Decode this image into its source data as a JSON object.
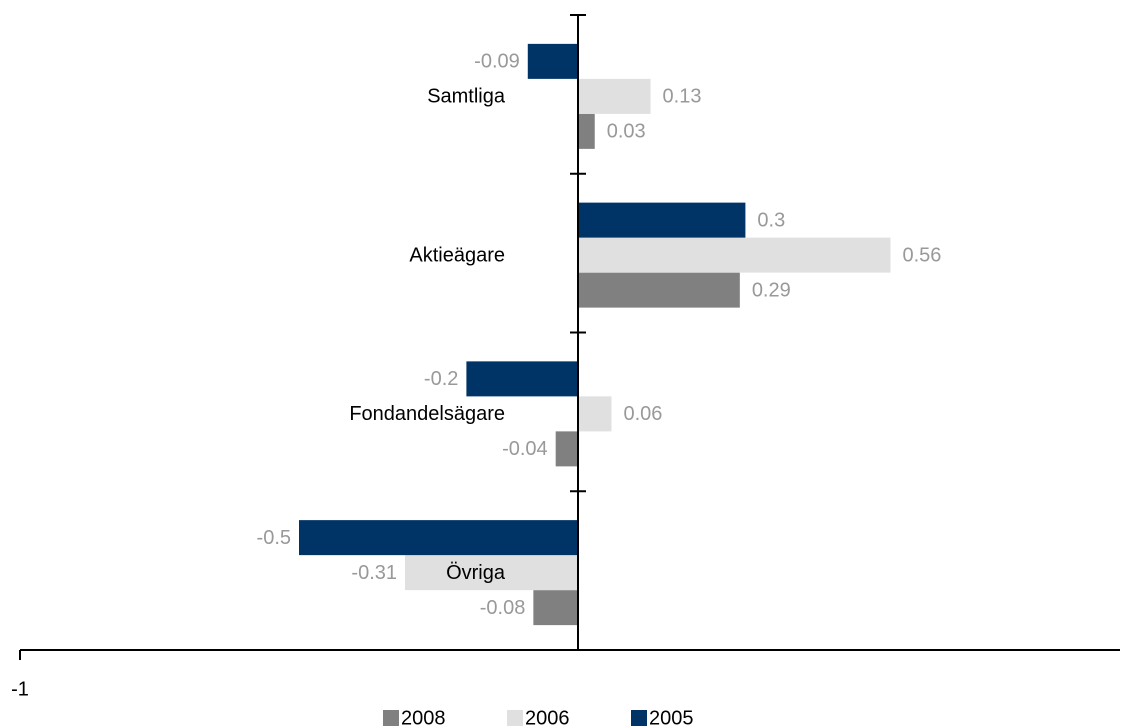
{
  "chart_data": {
    "type": "hbar",
    "categories": [
      "Samtliga",
      "Aktieägare",
      "Fondandelsägare",
      "Övriga"
    ],
    "series": [
      {
        "name": "2008",
        "color": "#808080",
        "values": [
          0.03,
          0.29,
          -0.04,
          -0.08
        ]
      },
      {
        "name": "2006",
        "color": "#e0e0e0",
        "values": [
          0.13,
          0.56,
          0.06,
          -0.31
        ]
      },
      {
        "name": "2005",
        "color": "#003366",
        "values": [
          -0.09,
          0.3,
          -0.2,
          -0.5
        ]
      }
    ],
    "xlim": [
      -1,
      1
    ],
    "xticks": [
      -1
    ]
  }
}
